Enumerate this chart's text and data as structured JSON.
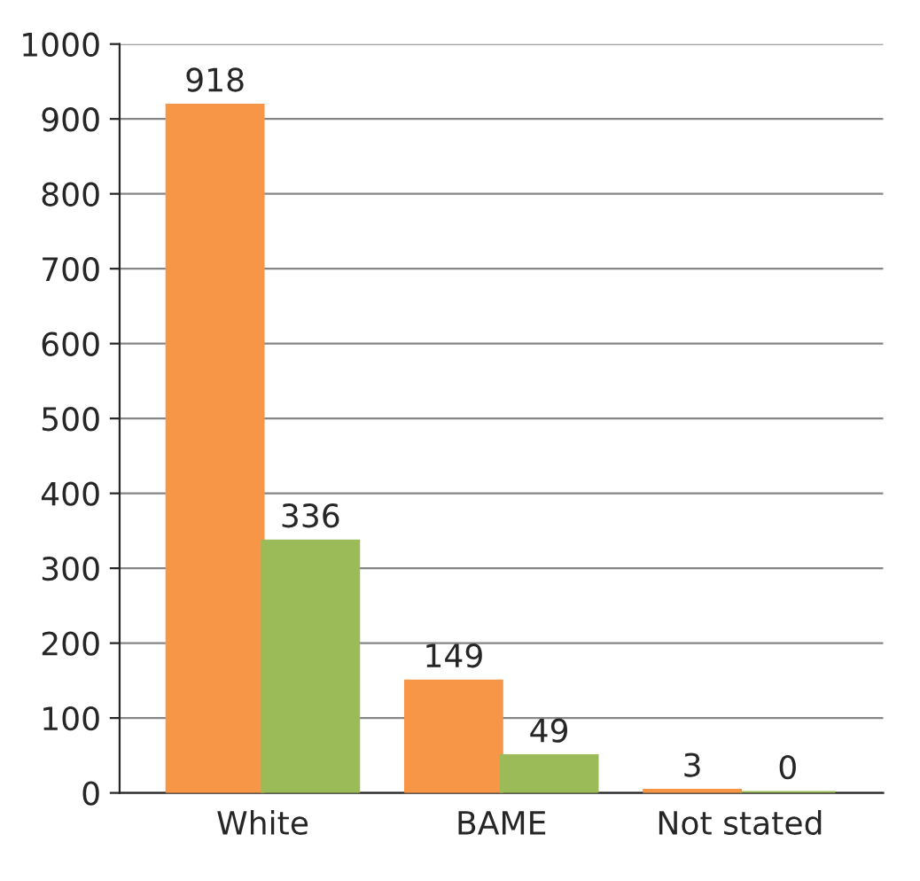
{
  "chart_data": {
    "type": "bar",
    "categories": [
      "White",
      "BAME",
      "Not stated"
    ],
    "series": [
      {
        "color": "#f79646",
        "values": [
          918,
          149,
          3
        ]
      },
      {
        "color": "#9bbb59",
        "values": [
          336,
          49,
          0
        ]
      }
    ],
    "ylim": [
      0,
      1000
    ],
    "yticks": [
      0,
      100,
      200,
      300,
      400,
      500,
      600,
      700,
      800,
      900,
      1000
    ],
    "grid": "y",
    "data_labels": true
  }
}
